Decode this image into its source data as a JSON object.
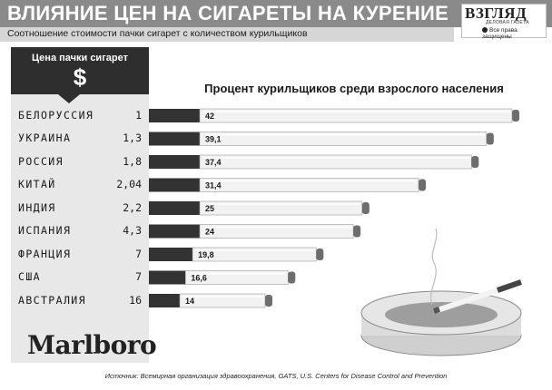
{
  "header": {
    "title": "ВЛИЯНИЕ ЦЕН НА СИГАРЕТЫ НА КУРЕНИЕ",
    "subtitle": "Соотношение стоимости пачки сигарет с количеством курильщиков"
  },
  "brand": {
    "name": "ВЗГЛЯД",
    "tagline": "ДЕЛОВАЯ ГАЗЕТА",
    "rights": "Все права защищены"
  },
  "price_panel": {
    "label": "Цена пачки сигарет",
    "symbol": "$"
  },
  "logo_text": "Marlboro",
  "source": "Источник: Всемирная организация здравоохранения, GATS, U.S. Centers for Disease Control and Prevention",
  "chart_data": {
    "type": "bar",
    "title": "Процент курильщиков среди взрослого населения",
    "categories": [
      "БЕЛОРУССИЯ",
      "УКРАИНА",
      "РОССИЯ",
      "КИТАЙ",
      "ИНДИЯ",
      "ИСПАНИЯ",
      "ФРАНЦИЯ",
      "США",
      "АВСТРАЛИЯ"
    ],
    "price_labels": [
      "1",
      "1,3",
      "1,8",
      "2,04",
      "2,2",
      "4,3",
      "7",
      "7",
      "16"
    ],
    "series": [
      {
        "values": [
          42,
          39.1,
          37.4,
          31.4,
          25,
          24,
          19.8,
          16.6,
          14
        ],
        "labels": [
          "42",
          "39,1",
          "37,4",
          "31,4",
          "25",
          "24",
          "19,8",
          "16,6",
          "14"
        ]
      }
    ],
    "xlim": [
      0,
      42
    ],
    "orientation": "horizontal",
    "grid": false,
    "legend": "none"
  },
  "colors": {
    "title_bar": "#8a8a8a",
    "panel_dark": "#2e2e2e",
    "filter": "#333333",
    "paper": "#f2f2f2",
    "ash": "#6e6e6e"
  }
}
